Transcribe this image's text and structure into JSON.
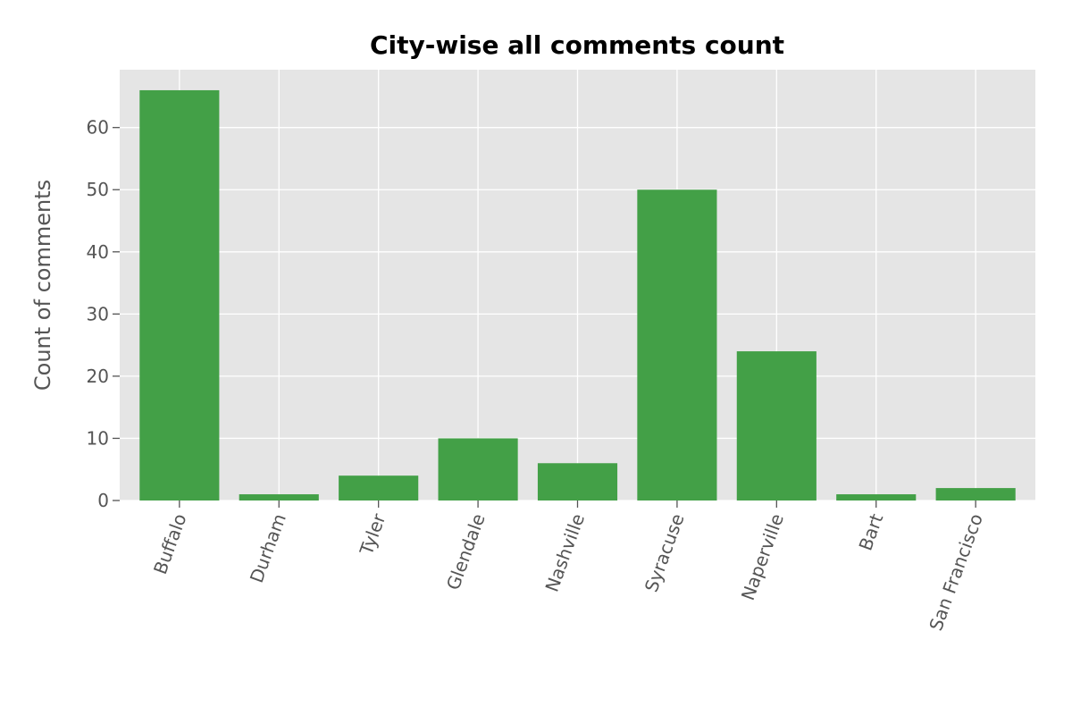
{
  "chart_data": {
    "type": "bar",
    "title": "City-wise all comments count",
    "xlabel": "",
    "ylabel": "Count of comments",
    "categories": [
      "Buffalo",
      "Durham",
      "Tyler",
      "Glendale",
      "Nashville",
      "Syracuse",
      "Naperville",
      "Bart",
      "San Francisco"
    ],
    "values": [
      66,
      1,
      4,
      10,
      6,
      50,
      24,
      1,
      2
    ],
    "ylim": [
      0,
      69.3
    ],
    "yticks": [
      0,
      10,
      20,
      30,
      40,
      50,
      60
    ],
    "grid": true,
    "bar_color": "#43a047",
    "background_color": "#e5e5e5",
    "grid_color": "#ffffff"
  }
}
